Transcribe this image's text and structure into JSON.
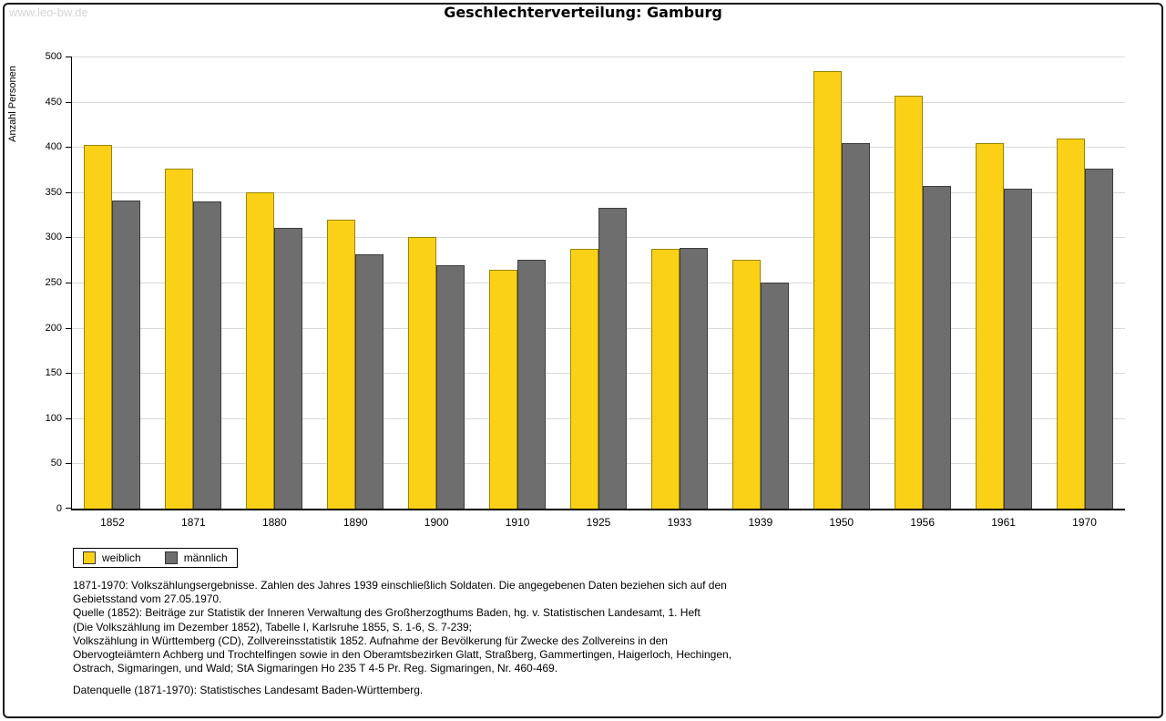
{
  "watermark": "www.leo-bw.de",
  "chart_data": {
    "type": "bar",
    "title": "Geschlechterverteilung: Gamburg",
    "ylabel": "Anzahl Personen",
    "xlabel": "",
    "ylim": [
      0,
      500
    ],
    "yticks": [
      0,
      50,
      100,
      150,
      200,
      250,
      300,
      350,
      400,
      450,
      500
    ],
    "grid": true,
    "legend_position": "bottom-left",
    "categories": [
      "1852",
      "1871",
      "1880",
      "1890",
      "1900",
      "1910",
      "1925",
      "1933",
      "1939",
      "1950",
      "1956",
      "1961",
      "1970"
    ],
    "series": [
      {
        "name": "weiblich",
        "color": "#FAD116",
        "border_color": "#9a8500",
        "values": [
          402,
          376,
          350,
          320,
          300,
          264,
          287,
          287,
          275,
          484,
          457,
          404,
          409
        ]
      },
      {
        "name": "männlich",
        "color": "#6E6E6E",
        "border_color": "#3d3d3d",
        "values": [
          341,
          340,
          310,
          281,
          269,
          275,
          333,
          288,
          250,
          404,
          357,
          354,
          376
        ]
      }
    ]
  },
  "footnotes": {
    "para1": "1871-1970: Volkszählungsergebnisse. Zahlen des Jahres 1939 einschließlich Soldaten. Die angegebenen Daten beziehen sich auf den\nGebietsstand vom 27.05.1970.\nQuelle (1852): Beiträge zur Statistik der Inneren Verwaltung des Großherzogthums Baden, hg. v. Statistischen Landesamt, 1. Heft\n(Die Volkszählung im Dezember 1852), Tabelle I, Karlsruhe 1855, S. 1-6, S. 7-239;\nVolkszählung in Württemberg (CD), Zollvereinsstatistik 1852. Aufnahme der Bevölkerung für Zwecke des Zollvereins in den\nObervogteiämtern Achberg und Trochtelfingen sowie in den Oberamtsbezirken Glatt, Straßberg, Gammertingen, Haigerloch, Hechingen,\nOstrach, Sigmaringen, und Wald; StA Sigmaringen Ho 235 T 4-5 Pr. Reg. Sigmaringen, Nr. 460-469.",
    "para2": "Datenquelle (1871-1970): Statistisches Landesamt Baden-Württemberg."
  }
}
